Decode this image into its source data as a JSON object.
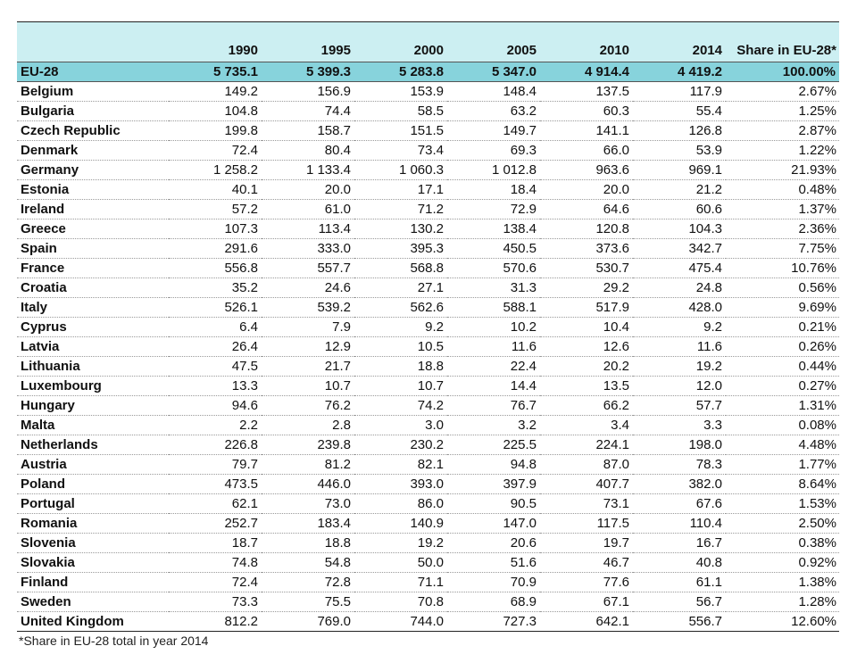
{
  "header": {
    "country": "",
    "years": [
      "1990",
      "1995",
      "2000",
      "2005",
      "2010",
      "2014"
    ],
    "share": "Share in EU-28*"
  },
  "eu_total": {
    "name": "EU-28",
    "values": [
      "5 735.1",
      "5 399.3",
      "5 283.8",
      "5 347.0",
      "4 914.4",
      "4 419.2"
    ],
    "share": "100.00%"
  },
  "rows": [
    {
      "name": "Belgium",
      "values": [
        "149.2",
        "156.9",
        "153.9",
        "148.4",
        "137.5",
        "117.9"
      ],
      "share": "2.67%"
    },
    {
      "name": "Bulgaria",
      "values": [
        "104.8",
        "74.4",
        "58.5",
        "63.2",
        "60.3",
        "55.4"
      ],
      "share": "1.25%"
    },
    {
      "name": "Czech Republic",
      "values": [
        "199.8",
        "158.7",
        "151.5",
        "149.7",
        "141.1",
        "126.8"
      ],
      "share": "2.87%"
    },
    {
      "name": "Denmark",
      "values": [
        "72.4",
        "80.4",
        "73.4",
        "69.3",
        "66.0",
        "53.9"
      ],
      "share": "1.22%"
    },
    {
      "name": "Germany",
      "values": [
        "1 258.2",
        "1 133.4",
        "1 060.3",
        "1 012.8",
        "963.6",
        "969.1"
      ],
      "share": "21.93%"
    },
    {
      "name": "Estonia",
      "values": [
        "40.1",
        "20.0",
        "17.1",
        "18.4",
        "20.0",
        "21.2"
      ],
      "share": "0.48%"
    },
    {
      "name": "Ireland",
      "values": [
        "57.2",
        "61.0",
        "71.2",
        "72.9",
        "64.6",
        "60.6"
      ],
      "share": "1.37%"
    },
    {
      "name": "Greece",
      "values": [
        "107.3",
        "113.4",
        "130.2",
        "138.4",
        "120.8",
        "104.3"
      ],
      "share": "2.36%"
    },
    {
      "name": "Spain",
      "values": [
        "291.6",
        "333.0",
        "395.3",
        "450.5",
        "373.6",
        "342.7"
      ],
      "share": "7.75%"
    },
    {
      "name": "France",
      "values": [
        "556.8",
        "557.7",
        "568.8",
        "570.6",
        "530.7",
        "475.4"
      ],
      "share": "10.76%"
    },
    {
      "name": "Croatia",
      "values": [
        "35.2",
        "24.6",
        "27.1",
        "31.3",
        "29.2",
        "24.8"
      ],
      "share": "0.56%"
    },
    {
      "name": "Italy",
      "values": [
        "526.1",
        "539.2",
        "562.6",
        "588.1",
        "517.9",
        "428.0"
      ],
      "share": "9.69%"
    },
    {
      "name": "Cyprus",
      "values": [
        "6.4",
        "7.9",
        "9.2",
        "10.2",
        "10.4",
        "9.2"
      ],
      "share": "0.21%"
    },
    {
      "name": "Latvia",
      "values": [
        "26.4",
        "12.9",
        "10.5",
        "11.6",
        "12.6",
        "11.6"
      ],
      "share": "0.26%"
    },
    {
      "name": "Lithuania",
      "values": [
        "47.5",
        "21.7",
        "18.8",
        "22.4",
        "20.2",
        "19.2"
      ],
      "share": "0.44%"
    },
    {
      "name": "Luxembourg",
      "values": [
        "13.3",
        "10.7",
        "10.7",
        "14.4",
        "13.5",
        "12.0"
      ],
      "share": "0.27%"
    },
    {
      "name": "Hungary",
      "values": [
        "94.6",
        "76.2",
        "74.2",
        "76.7",
        "66.2",
        "57.7"
      ],
      "share": "1.31%"
    },
    {
      "name": "Malta",
      "values": [
        "2.2",
        "2.8",
        "3.0",
        "3.2",
        "3.4",
        "3.3"
      ],
      "share": "0.08%"
    },
    {
      "name": "Netherlands",
      "values": [
        "226.8",
        "239.8",
        "230.2",
        "225.5",
        "224.1",
        "198.0"
      ],
      "share": "4.48%"
    },
    {
      "name": "Austria",
      "values": [
        "79.7",
        "81.2",
        "82.1",
        "94.8",
        "87.0",
        "78.3"
      ],
      "share": "1.77%"
    },
    {
      "name": "Poland",
      "values": [
        "473.5",
        "446.0",
        "393.0",
        "397.9",
        "407.7",
        "382.0"
      ],
      "share": "8.64%"
    },
    {
      "name": "Portugal",
      "values": [
        "62.1",
        "73.0",
        "86.0",
        "90.5",
        "73.1",
        "67.6"
      ],
      "share": "1.53%"
    },
    {
      "name": "Romania",
      "values": [
        "252.7",
        "183.4",
        "140.9",
        "147.0",
        "117.5",
        "110.4"
      ],
      "share": "2.50%"
    },
    {
      "name": "Slovenia",
      "values": [
        "18.7",
        "18.8",
        "19.2",
        "20.6",
        "19.7",
        "16.7"
      ],
      "share": "0.38%"
    },
    {
      "name": "Slovakia",
      "values": [
        "74.8",
        "54.8",
        "50.0",
        "51.6",
        "46.7",
        "40.8"
      ],
      "share": "0.92%"
    },
    {
      "name": "Finland",
      "values": [
        "72.4",
        "72.8",
        "71.1",
        "70.9",
        "77.6",
        "61.1"
      ],
      "share": "1.38%"
    },
    {
      "name": "Sweden",
      "values": [
        "73.3",
        "75.5",
        "70.8",
        "68.9",
        "67.1",
        "56.7"
      ],
      "share": "1.28%"
    },
    {
      "name": "United Kingdom",
      "values": [
        "812.2",
        "769.0",
        "744.0",
        "727.3",
        "642.1",
        "556.7"
      ],
      "share": "12.60%"
    }
  ],
  "footnote": "*Share in EU-28 total in year 2014",
  "colors": {
    "header_bg": "#cceff2",
    "eu_row_bg": "#87d3dc"
  }
}
